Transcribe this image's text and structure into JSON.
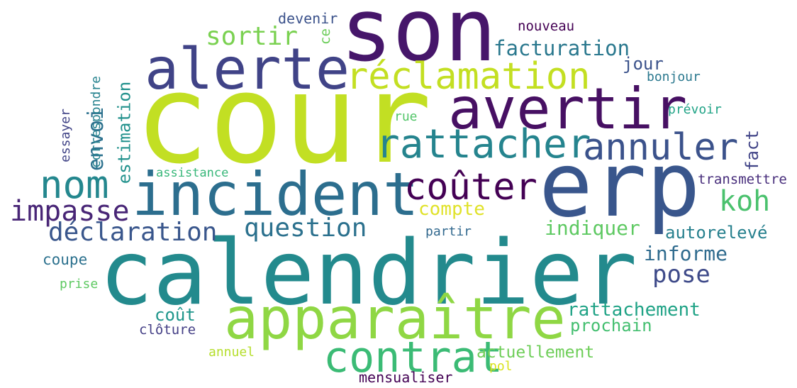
{
  "words": [
    {
      "text": "cour",
      "color": "#c2df23",
      "orientation": "horizontal"
    },
    {
      "text": "son",
      "color": "#46166a",
      "orientation": "horizontal"
    },
    {
      "text": "erp",
      "color": "#39568c",
      "orientation": "horizontal"
    },
    {
      "text": "calendrier",
      "color": "#238a8d",
      "orientation": "horizontal"
    },
    {
      "text": "incident",
      "color": "#2c6e8e",
      "orientation": "horizontal"
    },
    {
      "text": "alerte",
      "color": "#404387",
      "orientation": "horizontal"
    },
    {
      "text": "avertir",
      "color": "#471063",
      "orientation": "horizontal"
    },
    {
      "text": "apparaître",
      "color": "#8fd744",
      "orientation": "horizontal"
    },
    {
      "text": "réclamation",
      "color": "#c3df22",
      "orientation": "horizontal"
    },
    {
      "text": "rattacher",
      "color": "#25848e",
      "orientation": "horizontal"
    },
    {
      "text": "contrat",
      "color": "#3bbb75",
      "orientation": "horizontal"
    },
    {
      "text": "annuler",
      "color": "#3b528b",
      "orientation": "horizontal"
    },
    {
      "text": "coûter",
      "color": "#440154",
      "orientation": "horizontal"
    },
    {
      "text": "nom",
      "color": "#24878e",
      "orientation": "horizontal"
    },
    {
      "text": "impasse",
      "color": "#482576",
      "orientation": "horizontal"
    },
    {
      "text": "déclaration",
      "color": "#39568c",
      "orientation": "horizontal"
    },
    {
      "text": "question",
      "color": "#2c718e",
      "orientation": "horizontal"
    },
    {
      "text": "sortir",
      "color": "#7ad151",
      "orientation": "horizontal"
    },
    {
      "text": "facturation",
      "color": "#2a788e",
      "orientation": "horizontal"
    },
    {
      "text": "koh",
      "color": "#4ac16d",
      "orientation": "horizontal"
    },
    {
      "text": "compte",
      "color": "#e0e22a",
      "orientation": "horizontal"
    },
    {
      "text": "indiquer",
      "color": "#5ec962",
      "orientation": "horizontal"
    },
    {
      "text": "pose",
      "color": "#3e4a89",
      "orientation": "horizontal"
    },
    {
      "text": "informe",
      "color": "#2f6b8e",
      "orientation": "horizontal"
    },
    {
      "text": "autorelevé",
      "color": "#27808e",
      "orientation": "horizontal"
    },
    {
      "text": "rattachement",
      "color": "#20a386",
      "orientation": "horizontal"
    },
    {
      "text": "prochain",
      "color": "#44bf70",
      "orientation": "horizontal"
    },
    {
      "text": "actuellement",
      "color": "#6ece58",
      "orientation": "horizontal"
    },
    {
      "text": "coût",
      "color": "#1f968b",
      "orientation": "horizontal"
    },
    {
      "text": "clôture",
      "color": "#433e85",
      "orientation": "horizontal"
    },
    {
      "text": "annuel",
      "color": "#b5de2b",
      "orientation": "horizontal"
    },
    {
      "text": "pol",
      "color": "#d8e219",
      "orientation": "horizontal"
    },
    {
      "text": "mensualiser",
      "color": "#440154",
      "orientation": "horizontal"
    },
    {
      "text": "coupe",
      "color": "#2c718e",
      "orientation": "horizontal"
    },
    {
      "text": "prise",
      "color": "#5ec962",
      "orientation": "horizontal"
    },
    {
      "text": "partir",
      "color": "#31688e",
      "orientation": "horizontal"
    },
    {
      "text": "assistance",
      "color": "#37b779",
      "orientation": "horizontal"
    },
    {
      "text": "rue",
      "color": "#52c569",
      "orientation": "horizontal"
    },
    {
      "text": "devenir",
      "color": "#3b528b",
      "orientation": "horizontal"
    },
    {
      "text": "ce",
      "color": "#6ccd5a",
      "orientation": "vertical"
    },
    {
      "text": "nouveau",
      "color": "#440154",
      "orientation": "horizontal"
    },
    {
      "text": "jour",
      "color": "#3b528b",
      "orientation": "horizontal"
    },
    {
      "text": "bonjour",
      "color": "#2a788e",
      "orientation": "horizontal"
    },
    {
      "text": "prévoir",
      "color": "#20a386",
      "orientation": "horizontal"
    },
    {
      "text": "fact",
      "color": "#414487",
      "orientation": "vertical"
    },
    {
      "text": "transmettre",
      "color": "#472d7b",
      "orientation": "horizontal"
    },
    {
      "text": "envoi",
      "color": "#2c718e",
      "orientation": "vertical"
    },
    {
      "text": "estimation",
      "color": "#21918c",
      "orientation": "vertical"
    },
    {
      "text": "correspondre",
      "color": "#26828e",
      "orientation": "vertical"
    },
    {
      "text": "essayer",
      "color": "#414487",
      "orientation": "vertical"
    }
  ]
}
